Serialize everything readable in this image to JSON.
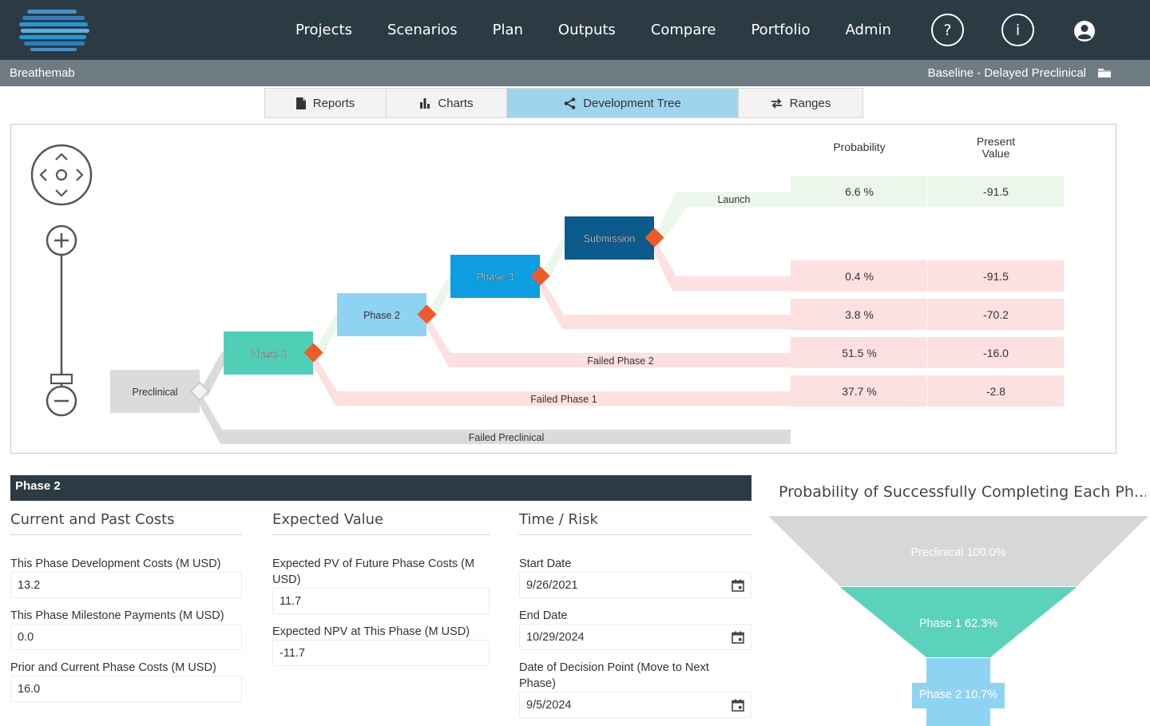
{
  "nav": {
    "items": [
      "Projects",
      "Scenarios",
      "Plan",
      "Outputs",
      "Compare",
      "Portfolio",
      "Admin"
    ],
    "help_label": "?",
    "info_label": "i"
  },
  "subheader": {
    "project": "Breathemab",
    "scenario": "Baseline - Delayed Preclinical"
  },
  "tabs": [
    {
      "label": "Reports",
      "icon": "document-icon"
    },
    {
      "label": "Charts",
      "icon": "bar-chart-icon"
    },
    {
      "label": "Development Tree",
      "icon": "share-icon"
    },
    {
      "label": "Ranges",
      "icon": "swap-arrows-icon"
    }
  ],
  "tree": {
    "header_probability": "Probability",
    "header_pv_line1": "Present",
    "header_pv_line2": "Value",
    "nodes": {
      "preclinical": "Preclinical",
      "phase1": "Phase 1",
      "phase2": "Phase 2",
      "phase3": "Phase 3",
      "submission": "Submission"
    },
    "branch_labels": {
      "launch": "Launch",
      "failed_phase2": "Failed Phase 2",
      "failed_phase1": "Failed Phase 1",
      "failed_preclinical": "Failed Preclinical"
    },
    "outcomes": [
      {
        "probability": "6.6 %",
        "pv": "-91.5",
        "kind": "success"
      },
      {
        "probability": "0.4 %",
        "pv": "-91.5",
        "kind": "fail"
      },
      {
        "probability": "3.8 %",
        "pv": "-70.2",
        "kind": "fail"
      },
      {
        "probability": "51.5 %",
        "pv": "-16.0",
        "kind": "fail"
      },
      {
        "probability": "37.7 %",
        "pv": "-2.8",
        "kind": "fail"
      }
    ],
    "colors": {
      "preclinical": "#d9dbdd",
      "phase1": "#4fcfb6",
      "phase2": "#8fd3f3",
      "phase3": "#0c9ee0",
      "submission": "#0b5b8c",
      "decision": "#f05a28",
      "success_band": "#eaf7ea",
      "fail_band": "#fde0e0",
      "gray_band": "#d9dbdd"
    }
  },
  "detail": {
    "title": "Phase 2",
    "costs": {
      "title": "Current and Past Costs",
      "fields": [
        {
          "label": "This Phase Development Costs (M USD)",
          "value": "13.2"
        },
        {
          "label": "This Phase Milestone Payments (M USD)",
          "value": "0.0"
        },
        {
          "label": "Prior and Current Phase Costs (M USD)",
          "value": "16.0"
        }
      ]
    },
    "expected": {
      "title": "Expected Value",
      "fields": [
        {
          "label": "Expected PV of Future Phase Costs (M USD)",
          "value": "11.7"
        },
        {
          "label": "Expected NPV at This Phase (M USD)",
          "value": "-11.7"
        }
      ]
    },
    "time": {
      "title": "Time / Risk",
      "fields": [
        {
          "label": "Start Date",
          "value": "9/26/2021"
        },
        {
          "label": "End Date",
          "value": "10/29/2024"
        },
        {
          "label": "Date of Decision Point (Move to Next Phase)",
          "value": "9/5/2024"
        }
      ]
    }
  },
  "funnel": {
    "title": "Probability of Successfully Completing Each Ph...",
    "stages": [
      {
        "label": "Preclinical 100.0%",
        "value": 100.0,
        "color": "#d5d7d9"
      },
      {
        "label": "Phase 1 62.3%",
        "value": 62.3,
        "color": "#5bd2bb"
      },
      {
        "label": "Phase 2 10.7%",
        "value": 10.7,
        "color": "#8fd3f3"
      }
    ]
  }
}
